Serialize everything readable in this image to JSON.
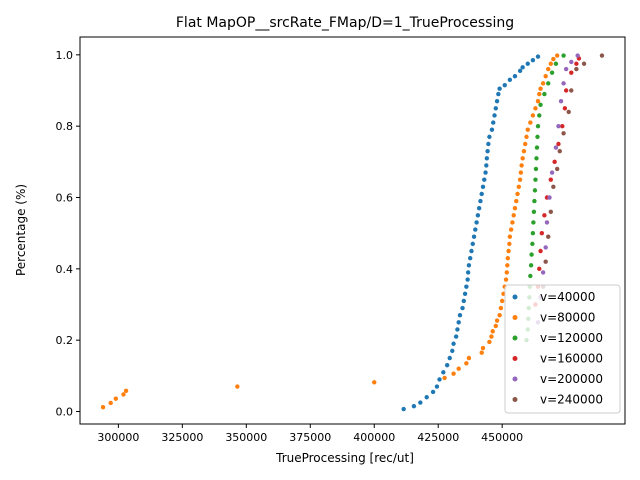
{
  "chart_data": {
    "type": "scatter",
    "title": "Flat MapOP__srcRate_FMap/D=1_TrueProcessing",
    "xlabel": "TrueProcessing [rec/ut]",
    "ylabel": "Percentage (%)",
    "xlim": [
      285000,
      498000
    ],
    "ylim": [
      -0.035,
      1.05
    ],
    "xticks": [
      300000,
      325000,
      350000,
      375000,
      400000,
      425000,
      450000
    ],
    "xtick_labels": [
      "300000",
      "325000",
      "350000",
      "375000",
      "400000",
      "425000",
      "450000"
    ],
    "yticks": [
      0.0,
      0.2,
      0.4,
      0.6,
      0.8,
      1.0
    ],
    "ytick_labels": [
      "0.0",
      "0.2",
      "0.4",
      "0.6",
      "0.8",
      "1.0"
    ],
    "grid": false,
    "legend_position": "lower-right",
    "series": [
      {
        "name": "v=40000",
        "color": "#1f77b4",
        "points": [
          [
            411500,
            0.007
          ],
          [
            415500,
            0.015
          ],
          [
            418000,
            0.025
          ],
          [
            420500,
            0.04
          ],
          [
            423000,
            0.055
          ],
          [
            424500,
            0.07
          ],
          [
            425500,
            0.09
          ],
          [
            427000,
            0.11
          ],
          [
            428500,
            0.13
          ],
          [
            429500,
            0.15
          ],
          [
            430500,
            0.17
          ],
          [
            431000,
            0.19
          ],
          [
            432000,
            0.21
          ],
          [
            432500,
            0.23
          ],
          [
            433000,
            0.25
          ],
          [
            433500,
            0.27
          ],
          [
            434500,
            0.29
          ],
          [
            435000,
            0.31
          ],
          [
            435500,
            0.33
          ],
          [
            436000,
            0.35
          ],
          [
            436500,
            0.37
          ],
          [
            436700,
            0.39
          ],
          [
            437000,
            0.41
          ],
          [
            437500,
            0.43
          ],
          [
            438000,
            0.45
          ],
          [
            438500,
            0.47
          ],
          [
            439000,
            0.49
          ],
          [
            439500,
            0.51
          ],
          [
            440000,
            0.53
          ],
          [
            440500,
            0.55
          ],
          [
            441000,
            0.57
          ],
          [
            441500,
            0.59
          ],
          [
            442000,
            0.61
          ],
          [
            442500,
            0.63
          ],
          [
            443000,
            0.65
          ],
          [
            443500,
            0.67
          ],
          [
            443800,
            0.69
          ],
          [
            444000,
            0.71
          ],
          [
            444300,
            0.73
          ],
          [
            444600,
            0.75
          ],
          [
            445000,
            0.77
          ],
          [
            446000,
            0.79
          ],
          [
            446500,
            0.81
          ],
          [
            447000,
            0.83
          ],
          [
            447500,
            0.85
          ],
          [
            448000,
            0.87
          ],
          [
            448500,
            0.89
          ],
          [
            449000,
            0.905
          ],
          [
            451000,
            0.915
          ],
          [
            453000,
            0.93
          ],
          [
            455000,
            0.94
          ],
          [
            457000,
            0.955
          ],
          [
            458000,
            0.965
          ],
          [
            460000,
            0.975
          ],
          [
            462000,
            0.985
          ],
          [
            464000,
            0.995
          ]
        ]
      },
      {
        "name": "v=80000",
        "color": "#ff7f0e",
        "points": [
          [
            294000,
            0.012
          ],
          [
            297000,
            0.024
          ],
          [
            299000,
            0.036
          ],
          [
            302000,
            0.048
          ],
          [
            303000,
            0.058
          ],
          [
            346500,
            0.07
          ],
          [
            400000,
            0.082
          ],
          [
            427500,
            0.094
          ],
          [
            431000,
            0.106
          ],
          [
            433000,
            0.12
          ],
          [
            436000,
            0.135
          ],
          [
            437000,
            0.15
          ],
          [
            442000,
            0.165
          ],
          [
            442500,
            0.178
          ],
          [
            445000,
            0.195
          ],
          [
            445800,
            0.21
          ],
          [
            446300,
            0.225
          ],
          [
            447500,
            0.24
          ],
          [
            448000,
            0.255
          ],
          [
            449000,
            0.27
          ],
          [
            449500,
            0.29
          ],
          [
            450000,
            0.31
          ],
          [
            450500,
            0.33
          ],
          [
            451000,
            0.35
          ],
          [
            451500,
            0.37
          ],
          [
            451800,
            0.39
          ],
          [
            452000,
            0.41
          ],
          [
            452200,
            0.43
          ],
          [
            452500,
            0.45
          ],
          [
            452800,
            0.47
          ],
          [
            453000,
            0.49
          ],
          [
            453500,
            0.51
          ],
          [
            454000,
            0.53
          ],
          [
            454500,
            0.55
          ],
          [
            455000,
            0.57
          ],
          [
            455500,
            0.59
          ],
          [
            456000,
            0.61
          ],
          [
            456500,
            0.63
          ],
          [
            457000,
            0.65
          ],
          [
            457300,
            0.67
          ],
          [
            457600,
            0.69
          ],
          [
            458000,
            0.71
          ],
          [
            458500,
            0.73
          ],
          [
            459000,
            0.75
          ],
          [
            459500,
            0.77
          ],
          [
            460000,
            0.79
          ],
          [
            461000,
            0.81
          ],
          [
            462000,
            0.83
          ],
          [
            463000,
            0.85
          ],
          [
            464000,
            0.87
          ],
          [
            464500,
            0.89
          ],
          [
            465000,
            0.905
          ],
          [
            466000,
            0.92
          ],
          [
            467000,
            0.94
          ],
          [
            468000,
            0.96
          ],
          [
            469000,
            0.975
          ],
          [
            470000,
            0.988
          ],
          [
            471500,
            0.998
          ]
        ]
      },
      {
        "name": "v=120000",
        "color": "#2ca02c",
        "points": [
          [
            459500,
            0.2
          ],
          [
            460000,
            0.23
          ],
          [
            460200,
            0.26
          ],
          [
            460400,
            0.29
          ],
          [
            460600,
            0.32
          ],
          [
            460800,
            0.35
          ],
          [
            461000,
            0.38
          ],
          [
            461300,
            0.41
          ],
          [
            461500,
            0.44
          ],
          [
            461800,
            0.47
          ],
          [
            462000,
            0.5
          ],
          [
            462200,
            0.53
          ],
          [
            462400,
            0.56
          ],
          [
            462600,
            0.59
          ],
          [
            462800,
            0.62
          ],
          [
            463000,
            0.65
          ],
          [
            463200,
            0.68
          ],
          [
            463400,
            0.71
          ],
          [
            463600,
            0.74
          ],
          [
            463800,
            0.77
          ],
          [
            464000,
            0.8
          ],
          [
            464500,
            0.83
          ],
          [
            465000,
            0.86
          ],
          [
            466500,
            0.89
          ],
          [
            468000,
            0.92
          ],
          [
            469500,
            0.95
          ],
          [
            471000,
            0.975
          ],
          [
            474000,
            0.998
          ]
        ]
      },
      {
        "name": "v=160000",
        "color": "#d62728",
        "points": [
          [
            463000,
            0.3
          ],
          [
            464000,
            0.35
          ],
          [
            464500,
            0.4
          ],
          [
            465000,
            0.45
          ],
          [
            465500,
            0.5
          ],
          [
            466500,
            0.55
          ],
          [
            467500,
            0.6
          ],
          [
            469000,
            0.65
          ],
          [
            470500,
            0.7
          ],
          [
            472000,
            0.75
          ],
          [
            473500,
            0.8
          ],
          [
            474500,
            0.85
          ],
          [
            475000,
            0.9
          ],
          [
            477000,
            0.95
          ],
          [
            479000,
            0.975
          ],
          [
            480000,
            0.99
          ]
        ]
      },
      {
        "name": "v=200000",
        "color": "#9467bd",
        "points": [
          [
            464000,
            0.25
          ],
          [
            465000,
            0.32
          ],
          [
            466000,
            0.39
          ],
          [
            467000,
            0.46
          ],
          [
            467500,
            0.53
          ],
          [
            468500,
            0.6
          ],
          [
            469500,
            0.67
          ],
          [
            471000,
            0.74
          ],
          [
            472000,
            0.8
          ],
          [
            473000,
            0.87
          ],
          [
            474000,
            0.92
          ],
          [
            475000,
            0.96
          ],
          [
            477000,
            0.98
          ],
          [
            479500,
            0.998
          ]
        ]
      },
      {
        "name": "v=240000",
        "color": "#8c564b",
        "points": [
          [
            466000,
            0.35
          ],
          [
            467000,
            0.42
          ],
          [
            468000,
            0.49
          ],
          [
            469000,
            0.56
          ],
          [
            470000,
            0.63
          ],
          [
            471500,
            0.68
          ],
          [
            472500,
            0.73
          ],
          [
            474000,
            0.78
          ],
          [
            476000,
            0.84
          ],
          [
            477000,
            0.9
          ],
          [
            479000,
            0.96
          ],
          [
            482000,
            0.975
          ],
          [
            489000,
            0.998
          ]
        ]
      }
    ]
  }
}
